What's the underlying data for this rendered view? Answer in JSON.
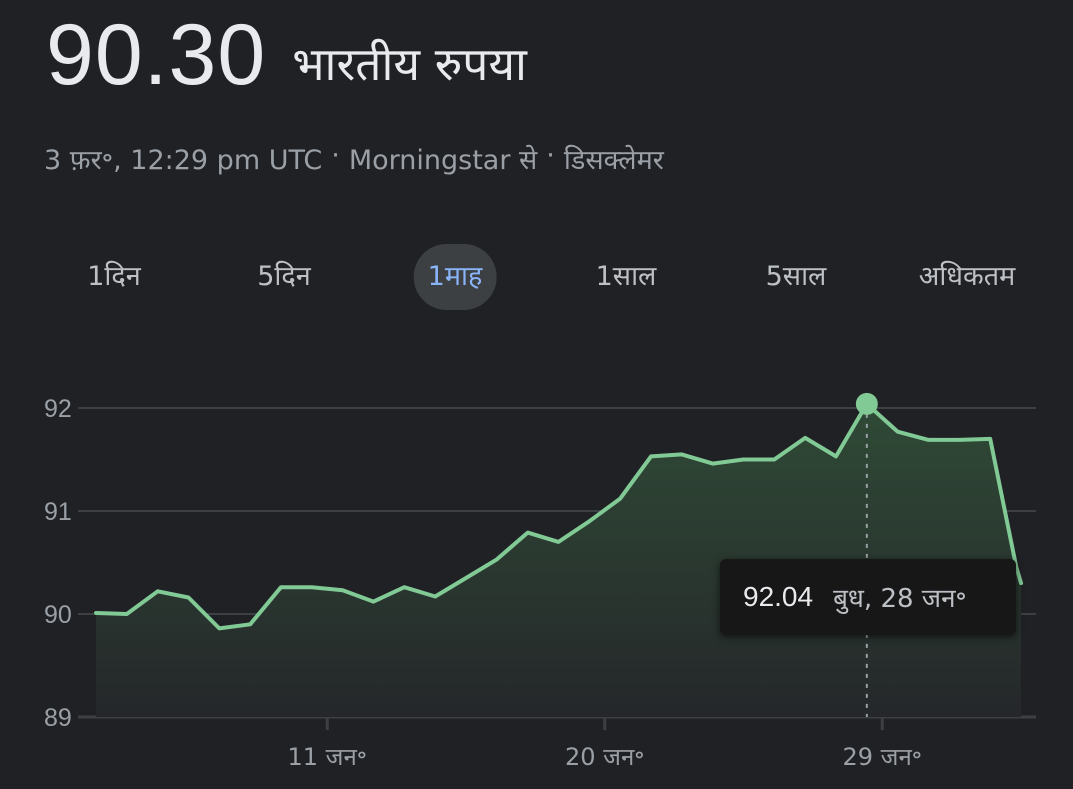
{
  "header": {
    "price": "90.30",
    "currency": "भारतीय रुपया"
  },
  "subtitle": {
    "timestamp": "3 फ़र॰, 12:29 pm UTC",
    "separator": "·",
    "source": "Morningstar से",
    "disclaimer": "डिसक्लेमर"
  },
  "tabs": [
    {
      "label": "1दिन",
      "active": false
    },
    {
      "label": "5दिन",
      "active": false
    },
    {
      "label": "1माह",
      "active": true
    },
    {
      "label": "1साल",
      "active": false
    },
    {
      "label": "5साल",
      "active": false
    },
    {
      "label": "अधिकतम",
      "active": false
    }
  ],
  "tooltip": {
    "value": "92.04",
    "date": "बुध, 28 जन॰"
  },
  "colors": {
    "line": "#81c995",
    "fill_top": "#2f4a36",
    "fill_bottom": "#25272a",
    "grid": "#3c4043",
    "active_tab_text": "#8ab4f8",
    "active_tab_bg": "#3c4043"
  },
  "chart_data": {
    "type": "area",
    "title": "",
    "xlabel": "",
    "ylabel": "",
    "ylim": [
      89,
      92
    ],
    "xlim": [
      0,
      30
    ],
    "yticks": [
      {
        "value": 92,
        "label": "92"
      },
      {
        "value": 91,
        "label": "91"
      },
      {
        "value": 90,
        "label": "90"
      },
      {
        "value": 89,
        "label": "89"
      }
    ],
    "xticks": [
      {
        "x": 7.5,
        "label": "11 जन॰"
      },
      {
        "x": 16.5,
        "label": "20 जन॰"
      },
      {
        "x": 25.5,
        "label": "29 जन॰"
      }
    ],
    "grid": true,
    "highlight": {
      "x": 25.0,
      "y": 92.04
    },
    "series": [
      {
        "points": [
          [
            0.0,
            90.01
          ],
          [
            1.0,
            90.0
          ],
          [
            2.0,
            90.22
          ],
          [
            3.0,
            90.16
          ],
          [
            4.0,
            89.86
          ],
          [
            5.0,
            89.9
          ],
          [
            6.0,
            90.26
          ],
          [
            7.0,
            90.26
          ],
          [
            8.0,
            90.23
          ],
          [
            9.0,
            90.12
          ],
          [
            10.0,
            90.26
          ],
          [
            11.0,
            90.17
          ],
          [
            12.0,
            90.35
          ],
          [
            13.0,
            90.53
          ],
          [
            14.0,
            90.79
          ],
          [
            15.0,
            90.7
          ],
          [
            16.0,
            90.9
          ],
          [
            17.0,
            91.12
          ],
          [
            18.0,
            91.53
          ],
          [
            19.0,
            91.55
          ],
          [
            20.0,
            91.46
          ],
          [
            21.0,
            91.5
          ],
          [
            22.0,
            91.5
          ],
          [
            23.0,
            91.71
          ],
          [
            24.0,
            91.53
          ],
          [
            25.0,
            92.04
          ],
          [
            26.0,
            91.77
          ],
          [
            27.0,
            91.69
          ],
          [
            28.0,
            91.69
          ],
          [
            29.0,
            91.7
          ],
          [
            29.85,
            90.45
          ],
          [
            30.0,
            90.3
          ]
        ]
      }
    ]
  }
}
